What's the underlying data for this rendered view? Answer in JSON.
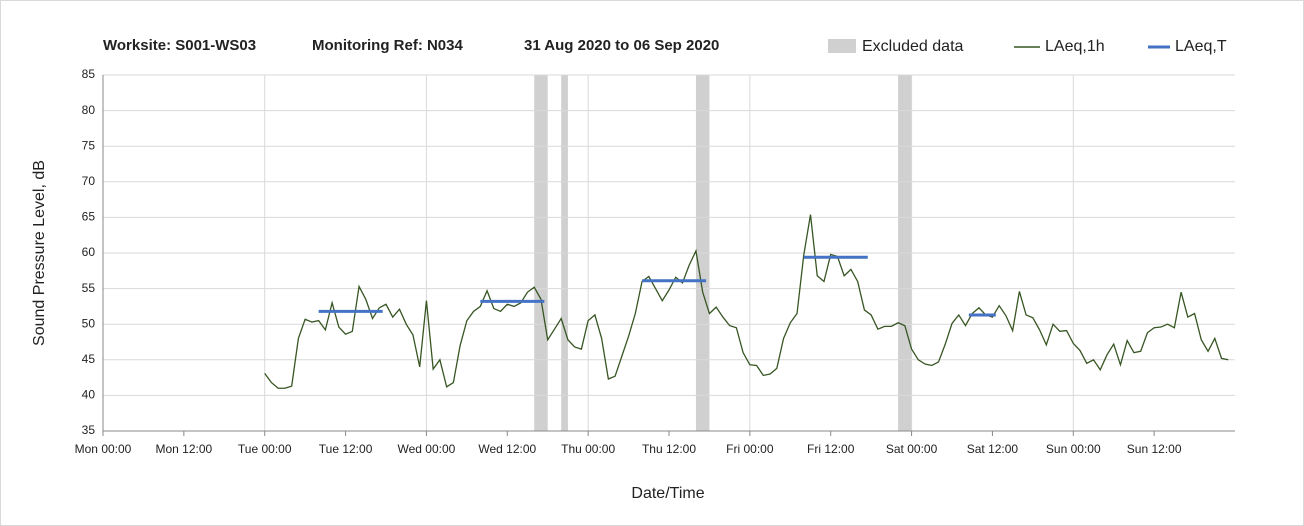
{
  "chart_data": {
    "type": "line",
    "title": [
      "Worksite: S001-WS03",
      "Monitoring Ref: N034",
      "31 Aug 2020 to 06 Sep 2020"
    ],
    "xlabel": "Date/Time",
    "ylabel": "Sound Pressure Level, dB",
    "xlim": [
      0,
      168
    ],
    "ylim": [
      35,
      85
    ],
    "yticks": [
      35,
      40,
      45,
      50,
      55,
      60,
      65,
      70,
      75,
      80,
      85
    ],
    "xticks": [
      {
        "value": 0,
        "label": "Mon 00:00"
      },
      {
        "value": 12,
        "label": "Mon 12:00"
      },
      {
        "value": 24,
        "label": "Tue 00:00"
      },
      {
        "value": 36,
        "label": "Tue 12:00"
      },
      {
        "value": 48,
        "label": "Wed 00:00"
      },
      {
        "value": 60,
        "label": "Wed 12:00"
      },
      {
        "value": 72,
        "label": "Thu 00:00"
      },
      {
        "value": 84,
        "label": "Thu 12:00"
      },
      {
        "value": 96,
        "label": "Fri 00:00"
      },
      {
        "value": 108,
        "label": "Fri 12:00"
      },
      {
        "value": 120,
        "label": "Sat 00:00"
      },
      {
        "value": 132,
        "label": "Sat 12:00"
      },
      {
        "value": 144,
        "label": "Sun 00:00"
      },
      {
        "value": 156,
        "label": "Sun 12:00"
      }
    ],
    "grid": true,
    "excluded": {
      "name": "Excluded data",
      "color": "#d0d0d0",
      "ranges": [
        [
          64,
          66
        ],
        [
          68,
          69
        ],
        [
          88,
          90
        ],
        [
          118,
          120
        ]
      ]
    },
    "series": [
      {
        "name": "LAeq,1h",
        "color": "#375623",
        "x": [
          24,
          25,
          26,
          27,
          28,
          29,
          30,
          31,
          32,
          33,
          34,
          35,
          36,
          37,
          38,
          39,
          40,
          41,
          42,
          43,
          44,
          45,
          46,
          47,
          48,
          49,
          50,
          51,
          52,
          53,
          54,
          55,
          56,
          57,
          58,
          59,
          60,
          61,
          62,
          63,
          64,
          65,
          66,
          67,
          68,
          69,
          70,
          71,
          72,
          73,
          74,
          75,
          76,
          77,
          78,
          79,
          80,
          81,
          82,
          83,
          84,
          85,
          86,
          87,
          88,
          89,
          90,
          91,
          92,
          93,
          94,
          95,
          96,
          97,
          98,
          99,
          100,
          101,
          102,
          103,
          104,
          105,
          106,
          107,
          108,
          109,
          110,
          111,
          112,
          113,
          114,
          115,
          116,
          117,
          118,
          119,
          120,
          121,
          122,
          123,
          124,
          125,
          126,
          127,
          128,
          129,
          130,
          131,
          132,
          133,
          134,
          135,
          136,
          137,
          138,
          139,
          140,
          141,
          142,
          143,
          144,
          145,
          146,
          147,
          148,
          149,
          150,
          151,
          152,
          153,
          154,
          155,
          156,
          157,
          158,
          159,
          160,
          161,
          162,
          163,
          164,
          165,
          166,
          167
        ],
        "values": [
          43.1,
          41.8,
          41.0,
          41.0,
          41.3,
          48,
          50.7,
          50.3,
          50.5,
          49.2,
          53,
          49.6,
          48.6,
          49.0,
          55.3,
          53.5,
          50.8,
          52.3,
          52.8,
          51,
          52.1,
          50,
          48.5,
          44,
          53.3,
          43.7,
          45,
          41.2,
          41.8,
          47,
          50.5,
          51.8,
          52.5,
          54.7,
          52.2,
          51.8,
          52.8,
          52.5,
          53,
          54.5,
          55.2,
          53.5,
          47.8,
          49.3,
          50.8,
          47.8,
          46.8,
          46.5,
          50.5,
          51.3,
          48,
          42.3,
          42.7,
          45.5,
          48.3,
          51.5,
          56,
          56.7,
          55,
          53.3,
          54.8,
          56.6,
          55.8,
          58.3,
          60.3,
          54.5,
          51.5,
          52.4,
          51,
          49.8,
          49.5,
          46,
          44.3,
          44.2,
          42.8,
          43,
          43.8,
          48,
          50.2,
          51.5,
          59.7,
          65.4,
          56.8,
          56,
          59.8,
          59.5,
          56.8,
          57.7,
          56,
          52,
          51.3,
          49.3,
          49.7,
          49.7,
          50.2,
          49.8,
          46.5,
          45,
          44.4,
          44.2,
          44.7,
          47.2,
          50.1,
          51.3,
          49.8,
          51.5,
          52.3,
          51.3,
          51,
          52.6,
          51.2,
          49.1,
          54.6,
          51.3,
          50.9,
          49.2,
          47.1,
          50,
          49,
          49.1,
          47.3,
          46.3,
          44.5,
          45,
          43.6,
          45.7,
          47.2,
          44.3,
          47.7,
          46,
          46.2,
          48.8,
          49.5,
          49.6,
          50,
          49.5,
          54.5,
          51,
          51.5,
          47.8,
          46.2,
          48,
          45.2,
          45
        ]
      },
      {
        "name": "LAeq,T",
        "color": "#4472c4",
        "segments": [
          {
            "x": [
              32,
              41.5
            ],
            "value": 51.8
          },
          {
            "x": [
              56,
              65.5
            ],
            "value": 53.2
          },
          {
            "x": [
              80,
              89.5
            ],
            "value": 56.1
          },
          {
            "x": [
              104,
              113.5
            ],
            "value": 59.4
          },
          {
            "x": [
              128.5,
              132.5
            ],
            "value": 51.3
          }
        ]
      }
    ]
  }
}
